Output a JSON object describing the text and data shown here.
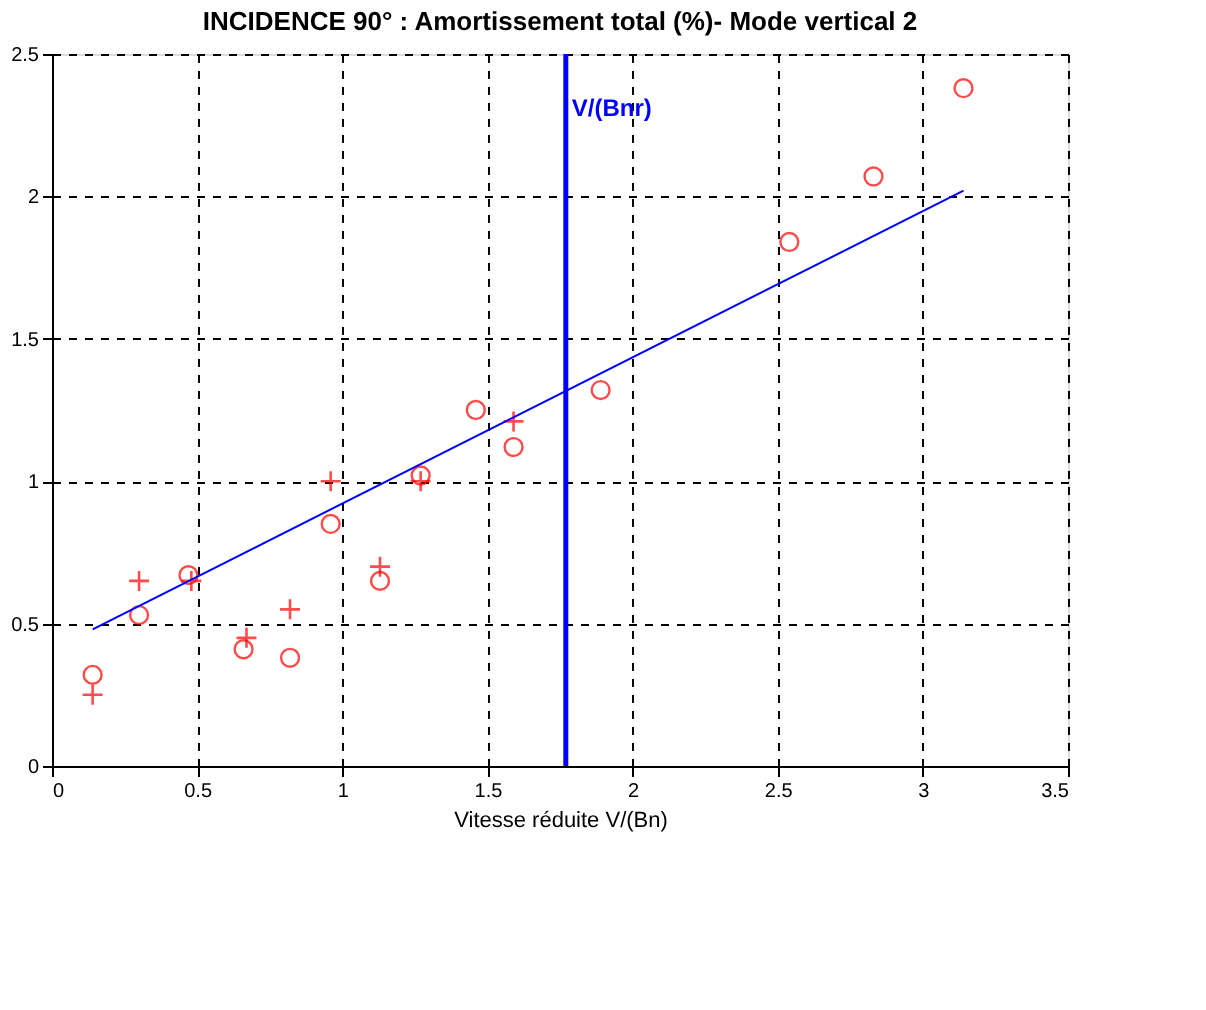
{
  "chart_data": {
    "type": "scatter",
    "title": "INCIDENCE 90° : Amortissement total (%)- Mode vertical 2",
    "xlabel": "Vitesse réduite V/(Bn)",
    "xlim": [
      0,
      3.5
    ],
    "xticks": [
      0,
      0.5,
      1,
      1.5,
      2,
      2.5,
      3,
      3.5
    ],
    "ylim": [
      0,
      2.5
    ],
    "yticks": [
      0,
      0.5,
      1,
      1.5,
      2,
      2.5
    ],
    "grid": true,
    "series": [
      {
        "marker": "circle",
        "color": "#ff0000",
        "x": [
          0.14,
          0.3,
          0.47,
          0.66,
          0.82,
          0.96,
          1.13,
          1.27,
          1.46,
          1.59,
          1.89,
          2.54,
          2.83,
          3.14
        ],
        "values": [
          0.32,
          0.53,
          0.67,
          0.41,
          0.38,
          0.85,
          0.65,
          1.02,
          1.25,
          1.12,
          1.32,
          1.84,
          2.07,
          2.38
        ]
      },
      {
        "marker": "cross",
        "color": "#ff0000",
        "x": [
          0.14,
          0.3,
          0.48,
          0.67,
          0.82,
          0.96,
          1.13,
          1.27,
          1.59
        ],
        "values": [
          0.25,
          0.65,
          0.65,
          0.45,
          0.55,
          1.0,
          0.7,
          1.0,
          1.21
        ]
      },
      {
        "type": "line",
        "color": "#0000ff",
        "x": [
          0.14,
          3.14
        ],
        "values": [
          0.48,
          2.02
        ]
      }
    ],
    "ref_lines": [
      {
        "axis": "x",
        "value": 1.77,
        "label": "V/(Bnr)",
        "color": "#0000ff"
      }
    ]
  }
}
